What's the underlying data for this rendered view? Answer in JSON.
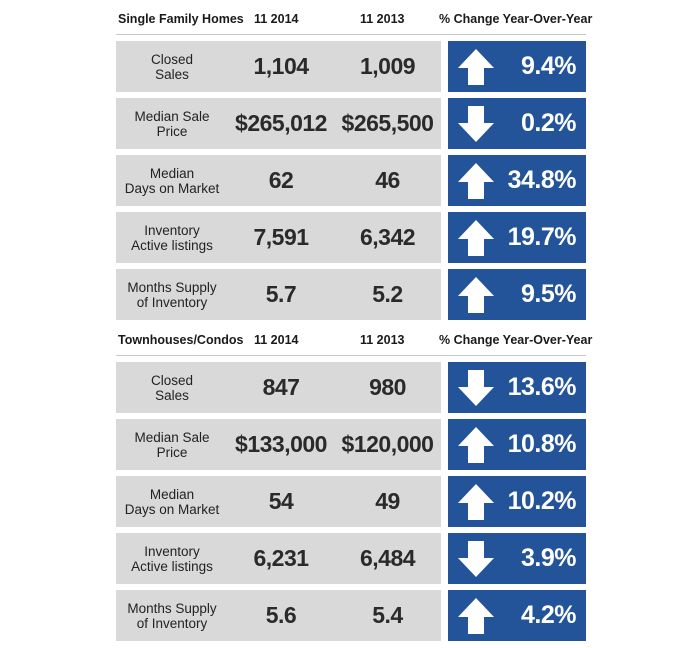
{
  "sections": [
    {
      "header": {
        "label": "Single Family Homes",
        "col1": "11 2014",
        "col2": "11 2013",
        "change": "% Change Year-Over-Year"
      },
      "rows": [
        {
          "label": "Closed\nSales",
          "v1": "1,104",
          "v2": "1,009",
          "direction": "up",
          "change": "9.4%"
        },
        {
          "label": "Median Sale\nPrice",
          "v1": "$265,012",
          "v2": "$265,500",
          "direction": "down",
          "change": "0.2%"
        },
        {
          "label": "Median\nDays on Market",
          "v1": "62",
          "v2": "46",
          "direction": "up",
          "change": "34.8%"
        },
        {
          "label": "Inventory\nActive listings",
          "v1": "7,591",
          "v2": "6,342",
          "direction": "up",
          "change": "19.7%"
        },
        {
          "label": "Months Supply\nof Inventory",
          "v1": "5.7",
          "v2": "5.2",
          "direction": "up",
          "change": "9.5%"
        }
      ]
    },
    {
      "header": {
        "label": "Townhouses/Condos",
        "col1": "11 2014",
        "col2": "11 2013",
        "change": "% Change Year-Over-Year"
      },
      "rows": [
        {
          "label": "Closed\nSales",
          "v1": "847",
          "v2": "980",
          "direction": "down",
          "change": "13.6%"
        },
        {
          "label": "Median Sale\nPrice",
          "v1": "$133,000",
          "v2": "$120,000",
          "direction": "up",
          "change": "10.8%"
        },
        {
          "label": "Median\nDays on Market",
          "v1": "54",
          "v2": "49",
          "direction": "up",
          "change": "10.2%"
        },
        {
          "label": "Inventory\nActive listings",
          "v1": "6,231",
          "v2": "6,484",
          "direction": "down",
          "change": "3.9%"
        },
        {
          "label": "Months Supply\nof Inventory",
          "v1": "5.6",
          "v2": "5.4",
          "direction": "up",
          "change": "4.2%"
        }
      ]
    }
  ],
  "colors": {
    "change_box": "#23549a",
    "row_background": "#d9d9d9",
    "arrow": "#ffffff"
  }
}
